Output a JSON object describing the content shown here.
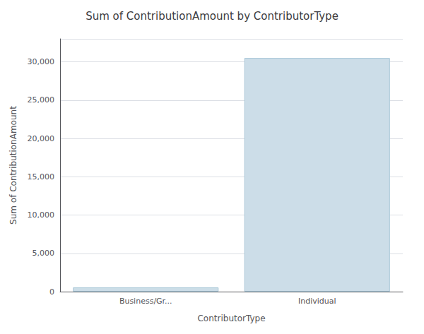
{
  "chart_data": {
    "type": "bar",
    "title": "Sum of ContributionAmount by ContributorType",
    "xlabel": "ContributorType",
    "ylabel": "Sum of ContributionAmount",
    "categories": [
      "Business/Gr...",
      "Individual"
    ],
    "values": [
      550,
      30500
    ],
    "color": "#ccdde8",
    "ylim": [
      0,
      33000
    ],
    "yticks": [
      0,
      {
        "value": 5000,
        "label": "5,000"
      },
      {
        "value": 10000,
        "label": "10,000"
      },
      {
        "value": 15000,
        "label": "15,000"
      },
      {
        "value": 20000,
        "label": "20,000"
      },
      {
        "value": 25000,
        "label": "25,000"
      },
      {
        "value": 30000,
        "label": "30,000"
      }
    ],
    "grid": true
  }
}
